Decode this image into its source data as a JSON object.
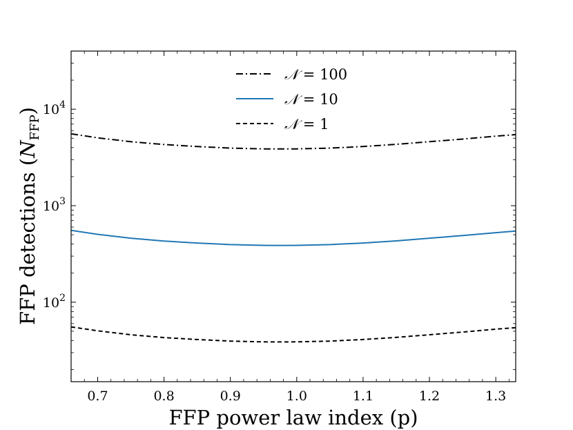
{
  "chart_data": {
    "type": "line",
    "title": "",
    "xlabel": "FFP power law index (p)",
    "ylabel": "FFP detections (N_FFP)",
    "ylabel_main": "FFP detections (",
    "ylabel_symbol": "N",
    "ylabel_subscript": "FFP",
    "ylabel_close": ")",
    "xlim": [
      0.66,
      1.33
    ],
    "ylim": [
      15,
      40000
    ],
    "yscale": "log",
    "legend_position": "top-center",
    "x_ticks": [
      "0.7",
      "0.8",
      "0.9",
      "1.0",
      "1.1",
      "1.2",
      "1.3"
    ],
    "y_ticks": [
      {
        "value": 100,
        "base": "10",
        "exp": "2"
      },
      {
        "value": 1000,
        "base": "10",
        "exp": "3"
      },
      {
        "value": 10000,
        "base": "10",
        "exp": "4"
      }
    ],
    "x": [
      0.66,
      0.7,
      0.75,
      0.8,
      0.85,
      0.9,
      0.95,
      0.97,
      1.0,
      1.05,
      1.1,
      1.15,
      1.2,
      1.25,
      1.3,
      1.33
    ],
    "series": [
      {
        "name": "𝒩 = 100",
        "label_symbol": "𝒩",
        "label_rest": " = 100",
        "color": "#000000",
        "dash": "10,4,2,4",
        "values": [
          5550,
          5050,
          4600,
          4300,
          4100,
          3950,
          3880,
          3870,
          3880,
          3950,
          4100,
          4320,
          4600,
          4900,
          5250,
          5450
        ]
      },
      {
        "name": "𝒩 = 10",
        "label_symbol": "𝒩",
        "label_rest": " = 10",
        "color": "#1f77b4",
        "dash": "",
        "values": [
          555,
          505,
          460,
          430,
          410,
          395,
          388,
          387,
          388,
          395,
          410,
          432,
          460,
          490,
          525,
          545
        ]
      },
      {
        "name": "𝒩 = 1",
        "label_symbol": "𝒩",
        "label_rest": " = 1",
        "color": "#000000",
        "dash": "6,4",
        "values": [
          55.5,
          50.5,
          46,
          43,
          41,
          39.5,
          38.8,
          38.7,
          38.8,
          39.5,
          41,
          43.2,
          46,
          49,
          52.5,
          54.5
        ]
      }
    ]
  }
}
